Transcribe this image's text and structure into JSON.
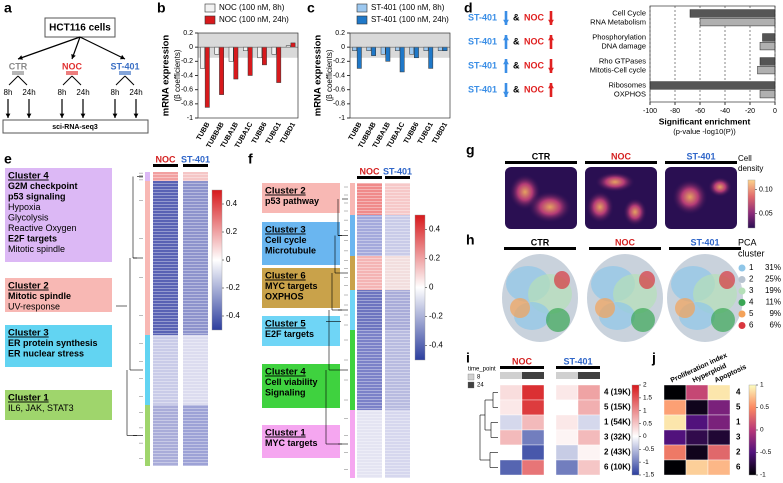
{
  "panel_labels": [
    "a",
    "b",
    "c",
    "d",
    "e",
    "f",
    "g",
    "h",
    "i",
    "j"
  ],
  "a": {
    "cells": "HCT116 cells",
    "arms": [
      "CTR",
      "NOC",
      "ST-401"
    ],
    "arm_colors": [
      "#8a8a8a",
      "#e03030",
      "#3a6fc4"
    ],
    "times": [
      "8h",
      "24h"
    ],
    "method": "sci-RNA-seq3"
  },
  "e": {
    "columns": [
      "NOC",
      "ST-401"
    ],
    "column_colors": [
      "#d42020",
      "#2f66c9"
    ],
    "colorbar_lim": [
      -0.5,
      0.5
    ],
    "colorbar_ticks": [
      0.4,
      0.2,
      0,
      -0.2,
      -0.4
    ],
    "clusters": [
      {
        "title": "Cluster 4",
        "color": "#dcb8f5",
        "lines": [
          {
            "text": "G2M checkpoint",
            "bold": true
          },
          {
            "text": "p53 signaling",
            "bold": true
          },
          {
            "text": "Hypoxia",
            "bold": false
          },
          {
            "text": "Glycolysis",
            "bold": false
          },
          {
            "text": "Reactive Oxygen",
            "bold": false
          },
          {
            "text": "E2F targets",
            "bold": true
          },
          {
            "text": "Mitotic spindle",
            "bold": false
          }
        ]
      },
      {
        "title": "Cluster 2",
        "color": "#f8b8b4",
        "lines": [
          {
            "text": "Mitotic spindle",
            "bold": true
          },
          {
            "text": "UV-response",
            "bold": false
          }
        ]
      },
      {
        "title": "Cluster 3",
        "color": "#62d4f2",
        "lines": [
          {
            "text": "ER protein synthesis",
            "bold": true
          },
          {
            "text": "ER nuclear stress",
            "bold": true
          }
        ]
      },
      {
        "title": "Cluster 1",
        "color": "#9fd56c",
        "lines": [
          {
            "text": "IL6, JAK, STAT3",
            "bold": false
          }
        ]
      }
    ]
  },
  "f": {
    "columns": [
      "NOC",
      "ST-401"
    ],
    "column_colors": [
      "#d42020",
      "#2f66c9"
    ],
    "colorbar_lim": [
      -0.5,
      0.5
    ],
    "colorbar_ticks": [
      0.4,
      0.2,
      0,
      -0.2,
      -0.4
    ],
    "clusters": [
      {
        "title": "Cluster 2",
        "color": "#f8b8b4",
        "lines": [
          {
            "text": "p53 pathway",
            "bold": true
          }
        ]
      },
      {
        "title": "Cluster 3",
        "color": "#6ab6f0",
        "lines": [
          {
            "text": "Cell cycle",
            "bold": true
          },
          {
            "text": "Microtubule",
            "bold": true
          }
        ]
      },
      {
        "title": "Cluster 6",
        "color": "#c9a24a",
        "lines": [
          {
            "text": "MYC targets",
            "bold": true
          },
          {
            "text": "OXPHOS",
            "bold": true
          }
        ]
      },
      {
        "title": "Cluster 5",
        "color": "#6fd5f6",
        "lines": [
          {
            "text": "E2F targets",
            "bold": true
          }
        ]
      },
      {
        "title": "Cluster 4",
        "color": "#3fd23f",
        "lines": [
          {
            "text": "Cell viability",
            "bold": true
          },
          {
            "text": "Signaling",
            "bold": true
          }
        ]
      },
      {
        "title": "Cluster 1",
        "color": "#f5a6f0",
        "lines": [
          {
            "text": "MYC targets",
            "bold": true
          }
        ]
      }
    ]
  },
  "g": {
    "columns": [
      "CTR",
      "NOC",
      "ST-401"
    ],
    "column_colors": [
      "#000000",
      "#d42020",
      "#2f66c9"
    ],
    "colorbar_label": [
      "Cell",
      "density"
    ],
    "colorbar_lim": [
      0.02,
      0.12
    ],
    "colorbar_ticks": [
      {
        "value": 0.1,
        "label": "0.10"
      },
      0.05
    ]
  },
  "h": {
    "columns": [
      "CTR",
      "NOC",
      "ST-401"
    ],
    "column_colors": [
      "#000000",
      "#d42020",
      "#2f66c9"
    ],
    "legend_title": [
      "PCA",
      "cluster"
    ],
    "clusters": [
      "1",
      "2",
      "3",
      "4",
      "5",
      "6"
    ],
    "shares": [
      "31%",
      "25%",
      "19%",
      "11%",
      "9%",
      "6%"
    ],
    "colors": [
      "#8fc6e8",
      "#b7c3d0",
      "#b5e0b8",
      "#3aa655",
      "#f4a259",
      "#d9363e"
    ]
  },
  "chart_data": [
    {
      "type": "bar",
      "ylabel": "mRNA expression",
      "ylabel_sub": "(β coefficients)",
      "categories": [
        "TUBB",
        "TUBB4B",
        "TUBA1B",
        "TUBA1C",
        "TUBB6",
        "TUBG1",
        "TUBD1"
      ],
      "series": [
        {
          "name": "NOC (100 nM, 8h)",
          "color": "#f2f2f2",
          "values": [
            -0.3,
            -0.1,
            -0.2,
            -0.05,
            -0.15,
            -0.1,
            0.02
          ]
        },
        {
          "name": "NOC (100 nM, 24h)",
          "color": "#d7191c",
          "values": [
            -0.85,
            -0.67,
            -0.45,
            -0.4,
            -0.25,
            -0.5,
            0.06
          ]
        }
      ],
      "ylim": [
        -1,
        0.2
      ],
      "yticks": [
        0.2,
        0,
        -0.2,
        -0.4,
        -0.6,
        -0.8,
        -1
      ],
      "band": [
        -0.15,
        0.2
      ]
    },
    {
      "type": "bar",
      "ylabel": "mRNA expression",
      "ylabel_sub": "(β coefficients)",
      "categories": [
        "TUBB",
        "TUBB4B",
        "TUBA1B",
        "TUBA1C",
        "TUBB6",
        "TUBG1",
        "TUBD1"
      ],
      "series": [
        {
          "name": "ST-401 (100 nM, 8h)",
          "color": "#9cc8f0",
          "values": [
            -0.05,
            -0.05,
            -0.1,
            -0.05,
            -0.1,
            -0.05,
            -0.05
          ]
        },
        {
          "name": "ST-401 (100 nM, 24h)",
          "color": "#1f78c8",
          "values": [
            -0.3,
            -0.12,
            -0.2,
            -0.35,
            -0.15,
            -0.3,
            -0.05
          ]
        }
      ],
      "ylim": [
        -1,
        0.2
      ],
      "yticks": [
        0.2,
        0,
        -0.2,
        -0.4,
        -0.6,
        -0.8,
        -1
      ],
      "band": [
        -0.15,
        0.2
      ]
    },
    {
      "type": "hbar",
      "xlabel": "Significant enrichment",
      "xlabel_sub": "(p-value -log10(P))",
      "categories": [
        [
          "Cell Cycle",
          "RNA Metabolism"
        ],
        [
          "Phosphorylation",
          "DNA damage"
        ],
        [
          "Rho GTPases",
          "Mitotis-Cell cycle"
        ],
        [
          "Ribosomes",
          "OXPHOS"
        ]
      ],
      "contrasts": [
        {
          "a": "ST-401",
          "a_dir": "down",
          "joiner": "&",
          "b": "NOC",
          "b_dir": "down"
        },
        {
          "a": "ST-401",
          "a_dir": "up",
          "joiner": "&",
          "b": "NOC",
          "b_dir": "up"
        },
        {
          "a": "ST-401",
          "a_dir": "up",
          "joiner": "&",
          "b": "NOC",
          "b_dir": "down"
        },
        {
          "a": "ST-401",
          "a_dir": "down",
          "joiner": "&",
          "b": "NOC",
          "b_dir": "up"
        }
      ],
      "a_color": "#3a8ee6",
      "b_color": "#e02020",
      "series": [
        {
          "color": "#555555",
          "values": [
            -68,
            -10,
            -12,
            -100
          ]
        },
        {
          "color": "#b0b0b0",
          "values": [
            -60,
            -12,
            -14,
            -12
          ]
        }
      ],
      "xlim": [
        -100,
        0
      ],
      "xticks": [
        -100,
        -80,
        -60,
        -40,
        -20,
        0
      ],
      "grid": true
    },
    {
      "type": "heatmap",
      "groups": [
        "NOC",
        "ST-401"
      ],
      "group_colors": [
        "#d42020",
        "#2f66c9"
      ],
      "time_point": {
        "title": "time_point",
        "levels": [
          "8",
          "24"
        ],
        "colors": [
          "#d0d0d0",
          "#404040"
        ]
      },
      "rows": [
        "4 (19K)",
        "5 (15K)",
        "1 (54K)",
        "3 (32K)",
        "2 (43K)",
        "6 (10K)"
      ],
      "values": [
        [
          0.3,
          1.8,
          0.2,
          0.8
        ],
        [
          0.2,
          1.7,
          0,
          0.7
        ],
        [
          -0.3,
          0.6,
          0.2,
          -0.3
        ],
        [
          0.6,
          -1,
          0.1,
          0.6
        ],
        [
          0,
          -1.3,
          -0.4,
          0.1
        ],
        [
          -1.2,
          1.2,
          -1,
          0.5
        ]
      ],
      "zlim": [
        -1.5,
        2
      ],
      "zticks": [
        2,
        1.5,
        1,
        0.5,
        0,
        -0.5,
        -1,
        -1.5
      ],
      "colormap": "diverging"
    },
    {
      "type": "heatmap",
      "columns": [
        "Proliferation index",
        "Hyperploid",
        "Apoptosis"
      ],
      "rows": [
        "4",
        "5",
        "1",
        "3",
        "2",
        "6"
      ],
      "values": [
        [
          -1,
          0.1,
          0.9
        ],
        [
          0.6,
          -0.9,
          -0.3
        ],
        [
          0.9,
          -0.5,
          -0.3
        ],
        [
          -0.5,
          -0.7,
          -0.8
        ],
        [
          0.4,
          -0.9,
          0.3
        ],
        [
          -1,
          0.8,
          0.7
        ]
      ],
      "zlim": [
        -1,
        1
      ],
      "zticks": [
        1,
        0.5,
        0,
        -0.5,
        -1
      ],
      "colormap": "magma"
    }
  ]
}
